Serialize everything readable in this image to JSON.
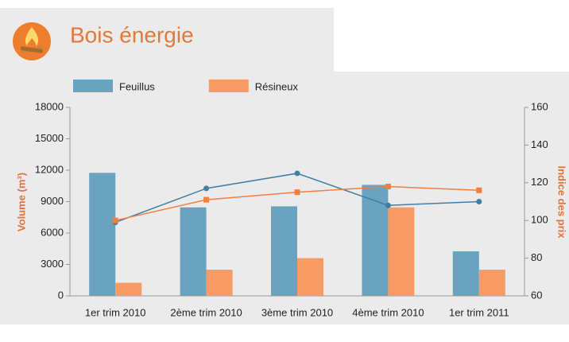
{
  "chart_data": {
    "type": "bar",
    "title": "Bois énergie",
    "categories": [
      "1er trim 2010",
      "2ème trim 2010",
      "3ème trim 2010",
      "4ème trim 2010",
      "1er trim 2011"
    ],
    "series": [
      {
        "name": "Feuillus",
        "color": "#6aa3bf",
        "values": [
          11750,
          8450,
          8550,
          10600,
          4250
        ]
      },
      {
        "name": "Résineux",
        "color": "#f79a63",
        "values": [
          1250,
          2500,
          3600,
          8450,
          2500
        ]
      },
      {
        "type": "line",
        "axis": "y2",
        "color": "#3f7fa6",
        "values": [
          99,
          117,
          125,
          108,
          110
        ]
      },
      {
        "type": "line",
        "axis": "y2",
        "color": "#f07f40",
        "values": [
          100,
          111,
          115,
          118,
          116
        ]
      }
    ],
    "y_label": "Volume (m³)",
    "y2_label": "Indice des prix",
    "ylim": [
      0,
      18000
    ],
    "yticks": [
      0,
      3000,
      6000,
      9000,
      12000,
      15000,
      18000
    ],
    "y2lim": [
      60,
      160
    ],
    "y2ticks": [
      60,
      80,
      100,
      120,
      140,
      160
    ],
    "grid": false,
    "legend": "top"
  }
}
